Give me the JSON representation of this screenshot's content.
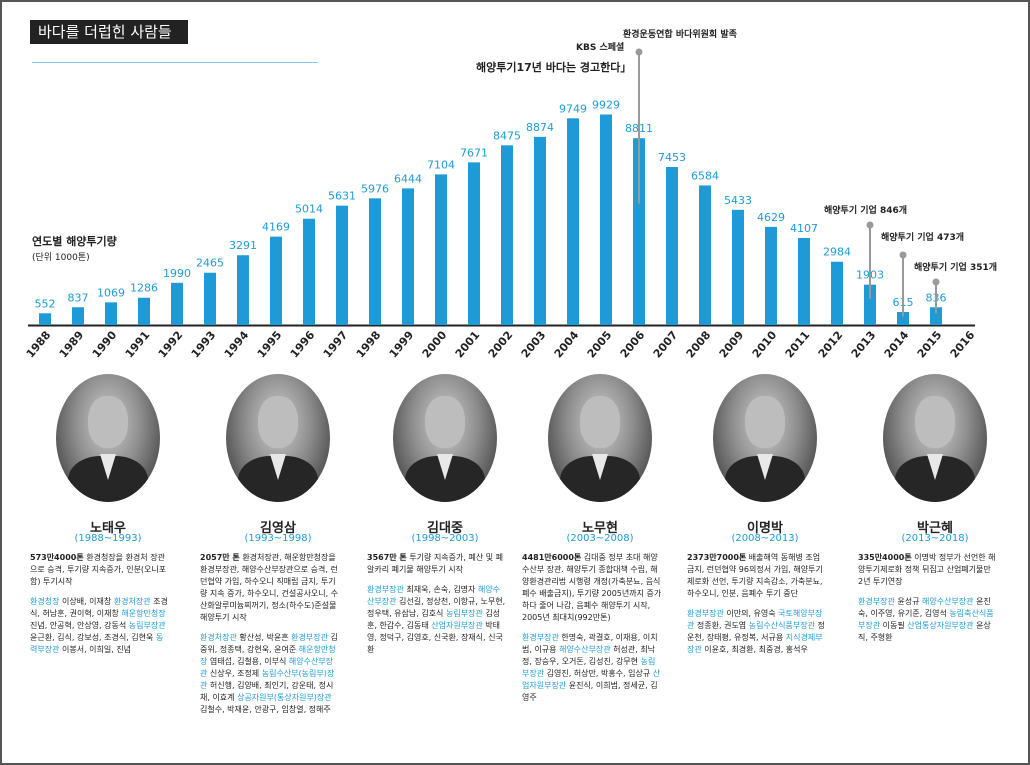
{
  "header": {
    "title": "바다를 더럽힌 사람들"
  },
  "legend": {
    "title": "연도별 해양투기량",
    "unit": "(단위 1000톤)"
  },
  "chart_data": {
    "type": "bar",
    "categories": [
      "1988",
      "1989",
      "1990",
      "1991",
      "1992",
      "1993",
      "1994",
      "1995",
      "1996",
      "1997",
      "1998",
      "1999",
      "2000",
      "2001",
      "2002",
      "2003",
      "2004",
      "2005",
      "2006",
      "2007",
      "2008",
      "2009",
      "2010",
      "2011",
      "2012",
      "2013",
      "2014",
      "2015",
      "2016"
    ],
    "values": [
      552,
      837,
      1069,
      1286,
      1990,
      2465,
      3291,
      4169,
      5014,
      5631,
      5976,
      6444,
      7104,
      7671,
      8475,
      8874,
      9749,
      9929,
      8811,
      7453,
      6584,
      5433,
      4629,
      4107,
      2984,
      1903,
      615,
      836,
      null
    ],
    "value_labels": [
      "552",
      "837",
      "1069",
      "1286",
      "1990",
      "2465",
      "3291",
      "4169",
      "5014",
      "5631",
      "5976",
      "6444",
      "7104",
      "7671",
      "8475",
      "8874",
      "9749",
      "9929",
      "8811",
      "7453",
      "6584",
      "5433",
      "4629",
      "4107",
      "2984",
      "1903",
      "615",
      "836",
      ""
    ],
    "ylim": [
      0,
      10000
    ],
    "bar_color": "#1e9bd7",
    "annotations": [
      {
        "year": "2005",
        "lines": [
          "KBS 스페셜",
          "해양투기17년 바다는 경고한다」"
        ]
      },
      {
        "year": "2006",
        "lines": [
          "환경운동연합 바다위원회 발족"
        ]
      },
      {
        "year": "2013",
        "lines": [
          "해양투기 기업 846개"
        ]
      },
      {
        "year": "2014",
        "lines": [
          "해양투기 기업 473개"
        ]
      },
      {
        "year": "2015",
        "lines": [
          "해양투기 기업 351개"
        ]
      }
    ]
  },
  "presidents": [
    {
      "name": "노태우",
      "term": "(1988~1993)",
      "paras": [
        [
          {
            "t": "573만4000톤",
            "c": "bold"
          },
          {
            "t": "  환경청장을 환경처 장관으로 승격, 투기량 지속증가, 인분(오니포함) 투기시작"
          }
        ],
        [
          {
            "t": "환경청장",
            "c": "blue"
          },
          {
            "t": " 이상배, 이재창  "
          },
          {
            "t": "환경처장관",
            "c": "blue"
          },
          {
            "t": " 조경식, 허남훈, 권이혁, 이재창  "
          },
          {
            "t": "해운항만청장",
            "c": "blue"
          },
          {
            "t": " 진념, 안공혁, 안상영, 강동석  "
          },
          {
            "t": "농림부장관",
            "c": "blue"
          },
          {
            "t": " 윤근환, 김식, 강보성, 조경식, 김현욱  "
          },
          {
            "t": "동력부장관",
            "c": "blue"
          },
          {
            "t": " 이봉서, 이희일, 진념"
          }
        ]
      ]
    },
    {
      "name": "김영삼",
      "term": "(1993~1998)",
      "paras": [
        [
          {
            "t": "2057만 톤",
            "c": "bold"
          },
          {
            "t": "  환경처장관, 해운항만청장을 환경부장관, 해양수산부장관으로 승격, 런던협약 가입, 하수오니 직매립 금지, 투기량 지속 증가, 하수오니, 건설공사오니, 수산화알루미늄찌꺼기, 정소(하수도)준설물 해양투기 시작"
          }
        ],
        [
          {
            "t": "환경처장관",
            "c": "blue"
          },
          {
            "t": " 황산성, 박윤흔  "
          },
          {
            "t": "환경부장관",
            "c": "blue"
          },
          {
            "t": " 김중위, 정종택, 강현욱, 윤여준  "
          },
          {
            "t": "해운항만청장",
            "c": "blue"
          },
          {
            "t": " 염태섭, 김철용, 이부식  "
          },
          {
            "t": "해양수산부장관",
            "c": "blue"
          },
          {
            "t": " 신상우, 조정제  "
          },
          {
            "t": "농림수산부(농림부)장관",
            "c": "blue"
          },
          {
            "t": " 허신행, 김양배, 최인기, 강운태, 정시채, 이효계  "
          },
          {
            "t": "상공자원부(통상자원부)장관",
            "c": "blue"
          },
          {
            "t": " 김철수, 박재윤, 안광구, 임창열, 정해주"
          }
        ]
      ]
    },
    {
      "name": "김대중",
      "term": "(1998~2003)",
      "paras": [
        [
          {
            "t": "3567만 톤",
            "c": "bold"
          },
          {
            "t": "  투기량 지속증가, 폐산 및 폐알카리 폐기물 해양투기 시작"
          }
        ],
        [
          {
            "t": "환경부장관",
            "c": "blue"
          },
          {
            "t": " 최재욱, 손숙, 김명자  "
          },
          {
            "t": "해양수산부장관",
            "c": "blue"
          },
          {
            "t": " 김선길, 정상천, 이항규, 노무현, 정우택, 유삼남, 김호식  "
          },
          {
            "t": "농림부장관",
            "c": "blue"
          },
          {
            "t": " 김성훈, 한갑수, 김동태  "
          },
          {
            "t": "산업자원부장관",
            "c": "blue"
          },
          {
            "t": " 박태영, 정덕구, 김영호, 신국환, 장재식, 신국환"
          }
        ]
      ]
    },
    {
      "name": "노무현",
      "term": "(2003~2008)",
      "paras": [
        [
          {
            "t": "4481만6000톤",
            "c": "bold"
          },
          {
            "t": "  김대중 정부 초대 해양수산부 장관. 해양투기 종합대책 수립, 해양환경관리법 시행령 개정(가축분뇨, 음식폐수 배출금지), 투기량 2005년까지 증가하다 줄어 나감, 음폐수 해양투기 시작, 2005년 최대치(992만톤)"
          }
        ],
        [
          {
            "t": "환경부장관",
            "c": "blue"
          },
          {
            "t": " 한명숙, 곽결호, 이재용, 이치범, 이규용  "
          },
          {
            "t": "해양수산부장관",
            "c": "blue"
          },
          {
            "t": " 허성관, 최낙정, 장승우, 오거돈, 김성진, 강무현  "
          },
          {
            "t": "농림부장관",
            "c": "blue"
          },
          {
            "t": " 김영진, 허상만, 박홍수, 임상규  "
          },
          {
            "t": "산업자원부장관",
            "c": "blue"
          },
          {
            "t": " 윤진식, 이희범, 정세균, 김영주"
          }
        ]
      ]
    },
    {
      "name": "이명박",
      "term": "(2008~2013)",
      "paras": [
        [
          {
            "t": "2373만7000톤",
            "c": "bold"
          },
          {
            "t": "  배출해역 동해병 조업금지, 런던협약 96의정서 가입, 해양투기 제로화 선언, 투기량 지속감소, 가축분뇨, 하수오니, 인분, 음폐수 투기 중단"
          }
        ],
        [
          {
            "t": "환경부장관",
            "c": "blue"
          },
          {
            "t": " 이만의, 유영숙  "
          },
          {
            "t": "국토해양부장관",
            "c": "blue"
          },
          {
            "t": " 정종환, 권도엽  "
          },
          {
            "t": "농림수산식품부장관",
            "c": "blue"
          },
          {
            "t": " 정운천, 장태평, 유정복, 서규용  "
          },
          {
            "t": "지식경제부장관",
            "c": "blue"
          },
          {
            "t": " 이윤호, 최경환, 최중경, 홍석우"
          }
        ]
      ]
    },
    {
      "name": "박근혜",
      "term": "(2013~2018)",
      "paras": [
        [
          {
            "t": "335만4000톤",
            "c": "bold"
          },
          {
            "t": "  이명박 정부가 선언한 해양투기제로화 정책 뒤집고 산업폐기물만 2년 투기연장"
          }
        ],
        [
          {
            "t": "환경부장관",
            "c": "blue"
          },
          {
            "t": " 윤성규  "
          },
          {
            "t": "해양수산부장관",
            "c": "blue"
          },
          {
            "t": " 윤진숙, 이주영, 유기준, 김영석  "
          },
          {
            "t": "농림축산식품부장관",
            "c": "blue"
          },
          {
            "t": " 이동필  "
          },
          {
            "t": "산업통상자원부장관",
            "c": "blue"
          },
          {
            "t": " 윤상직, 주형환"
          }
        ]
      ]
    }
  ]
}
